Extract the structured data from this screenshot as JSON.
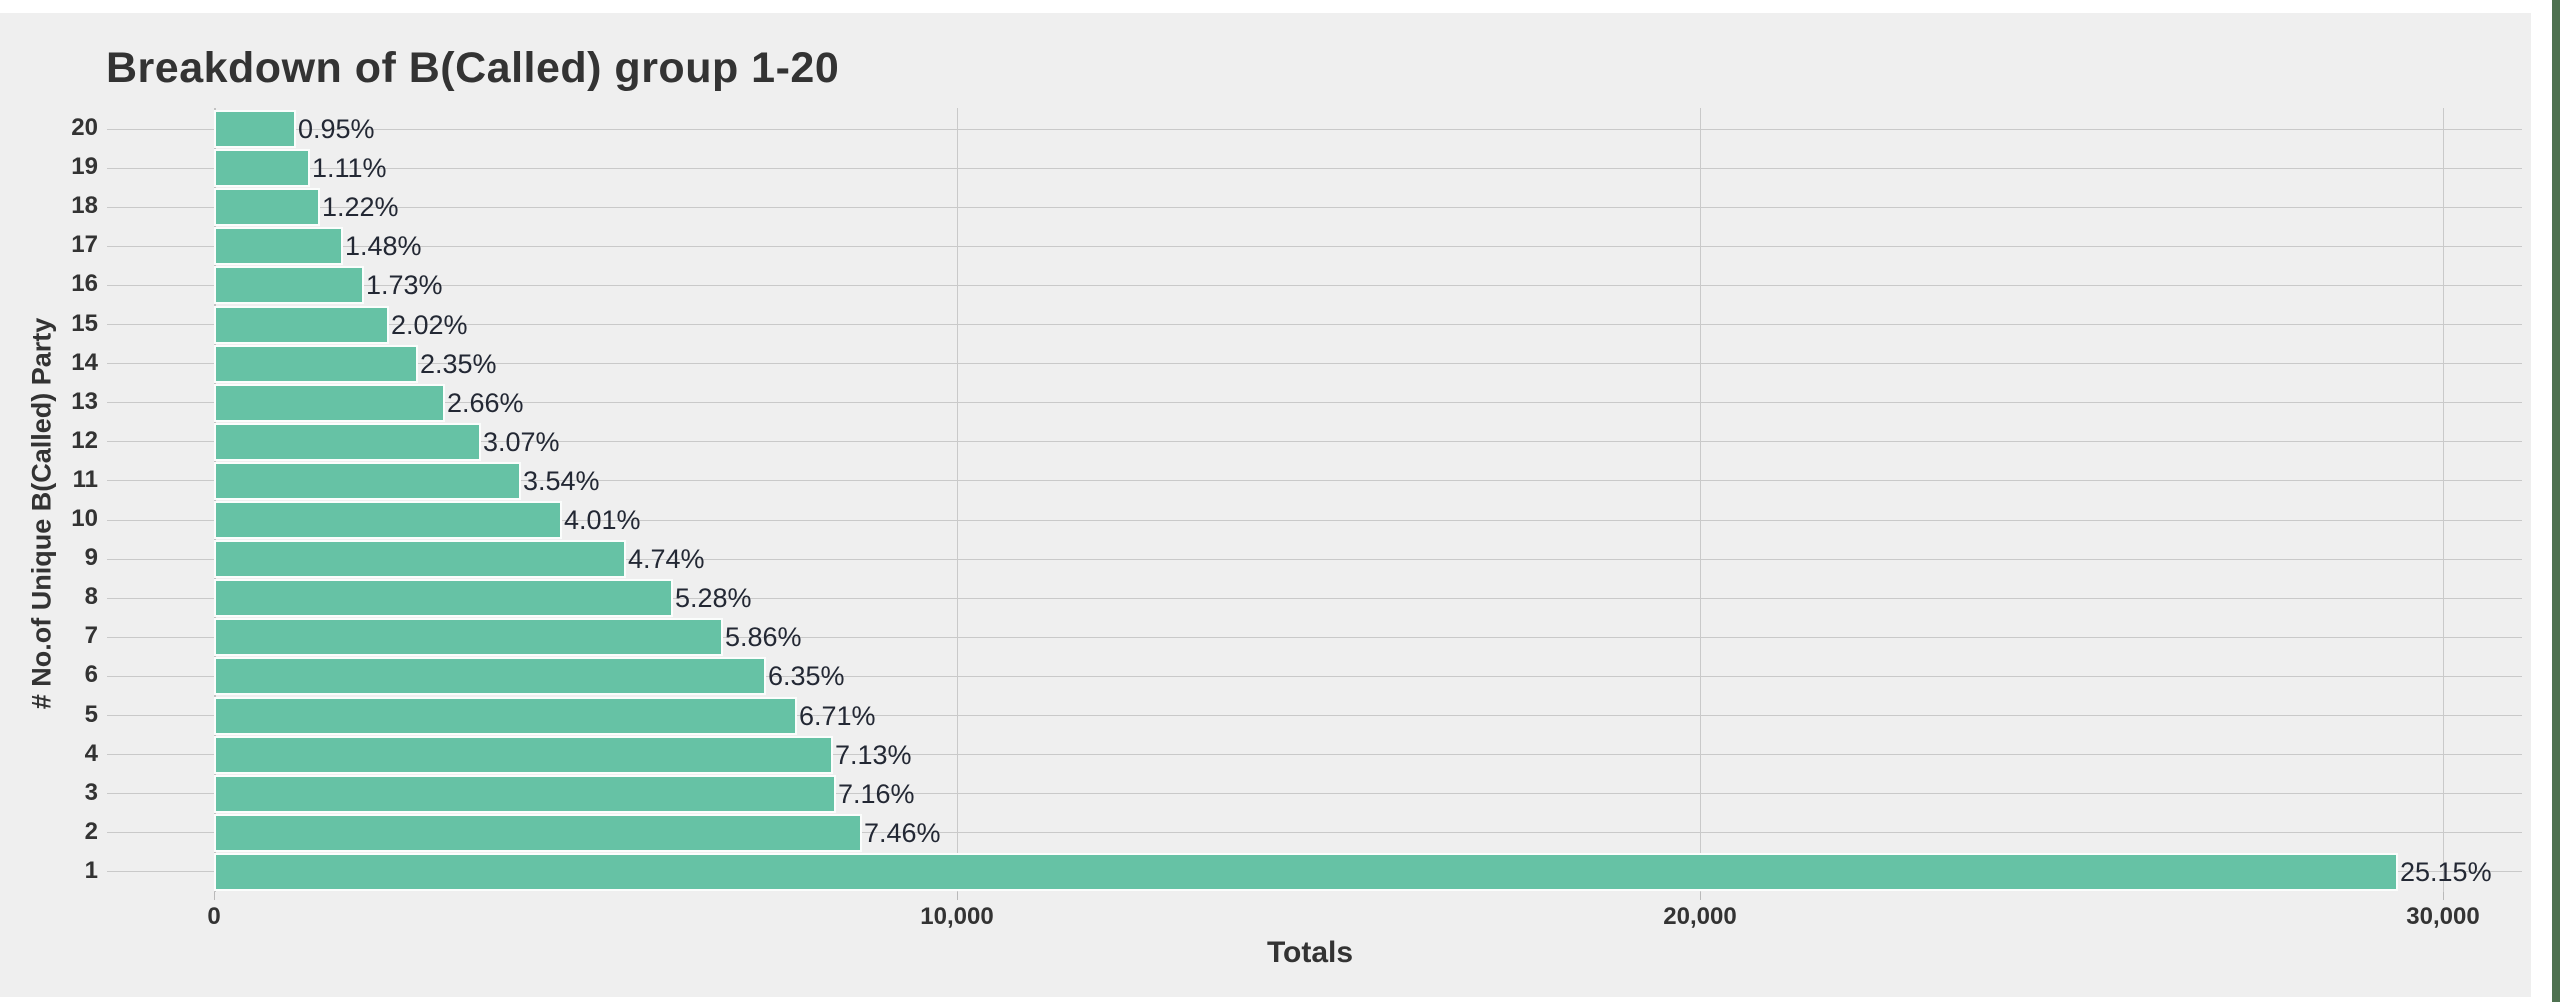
{
  "window": {
    "page_background": "#FFFFFF",
    "card_background": "#EFEFEF",
    "right_edge_color": "#4E7150"
  },
  "chart_data": {
    "type": "bar",
    "orientation": "horizontal",
    "title": "Breakdown of B(Called) group 1-20",
    "xlabel": "Totals",
    "ylabel": "# No.of Unique B(Called) Party",
    "legend_position": "none",
    "grid": "on",
    "xlim": [
      0,
      30000
    ],
    "xticks": [
      {
        "value": 0,
        "label": "0"
      },
      {
        "value": 10000,
        "label": "10,000"
      },
      {
        "value": 20000,
        "label": "20,000"
      },
      {
        "value": 30000,
        "label": "30,000"
      }
    ],
    "categories": [
      "20",
      "19",
      "18",
      "17",
      "16",
      "15",
      "14",
      "13",
      "12",
      "11",
      "10",
      "9",
      "8",
      "7",
      "6",
      "5",
      "4",
      "3",
      "2",
      "1"
    ],
    "values": [
      1110,
      1298,
      1426,
      1730,
      2022,
      2361,
      2747,
      3110,
      3589,
      4138,
      4688,
      5541,
      6172,
      6850,
      7423,
      7844,
      8335,
      8370,
      8721,
      29400
    ],
    "labels": [
      "0.95%",
      "1.11%",
      "1.22%",
      "1.48%",
      "1.73%",
      "2.02%",
      "2.35%",
      "2.66%",
      "3.07%",
      "3.54%",
      "4.01%",
      "4.74%",
      "5.28%",
      "5.86%",
      "6.35%",
      "6.71%",
      "7.13%",
      "7.16%",
      "7.46%",
      "25.15%"
    ],
    "bar_color": "#66C2A5",
    "bar_border_color": "#FBFDFC",
    "grid_color": "#C9C9C9",
    "text_color": "#333333",
    "value_label_color": "#232834"
  }
}
